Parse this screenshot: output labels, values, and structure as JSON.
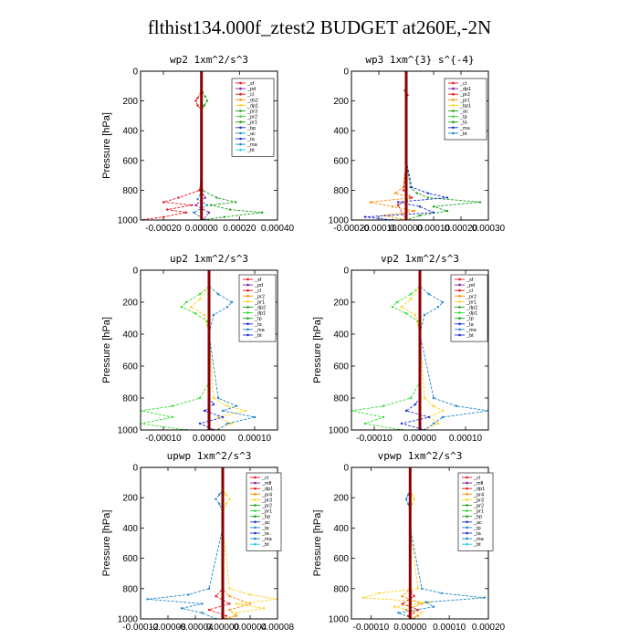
{
  "title": "flthist134.000f_ztest2  BUDGET at260E,-2N",
  "colors": {
    "red": "#e8141c",
    "purple": "#7b1fa2",
    "orange": "#ff8c00",
    "yellow": "#ffd11a",
    "green": "#1aa01a",
    "lime": "#33dd33",
    "blue": "#1a2fd6",
    "teal": "#1e88c8",
    "cyan": "#22d3e6",
    "darkred": "#8b0000",
    "black": "#000000"
  },
  "chart_data": [
    {
      "type": "line",
      "title": "wp2  1xm^2/s^3",
      "ylabel": "Pressure [hPa]",
      "xlim": [
        -0.00032,
        0.0004
      ],
      "ylim": [
        1000,
        0
      ],
      "xticks": [
        -0.0002,
        0,
        0.0002,
        0.0004
      ],
      "xtick_labels": [
        "-0.00020",
        "0.00000",
        "0.00020",
        "0.00040"
      ],
      "yticks": [
        0,
        200,
        400,
        600,
        800,
        1000
      ],
      "ytick_labels": [
        "0",
        "200",
        "400",
        "600",
        "800",
        "1000"
      ],
      "legend": [
        "_sf",
        "_pd",
        "_cl",
        "_ds2",
        "_dp1",
        "_pr3",
        "_pr2",
        "_pr1",
        "_bp",
        "_ac",
        "_ta",
        "_ma",
        "_bt"
      ],
      "series": [
        {
          "name": "_pr2",
          "color": "green",
          "y": [
            0,
            100,
            140,
            170,
            200,
            230,
            260,
            300,
            400,
            700,
            800,
            850,
            880,
            900,
            930,
            950,
            980,
            1000
          ],
          "values": [
            0,
            0,
            5e-06,
            2e-05,
            3e-05,
            1.5e-05,
            0,
            0,
            0,
            0,
            5e-06,
            8e-05,
            0.00018,
            5e-05,
            0.00015,
            0.00032,
            0.00012,
            0
          ]
        },
        {
          "name": "_pr1",
          "color": "red",
          "y": [
            0,
            100,
            150,
            180,
            200,
            230,
            260,
            300,
            400,
            700,
            800,
            850,
            880,
            900,
            930,
            950,
            980,
            1000
          ],
          "values": [
            0,
            0,
            -5e-06,
            -2e-05,
            -3e-05,
            -2e-05,
            0,
            0,
            0,
            0,
            -1e-05,
            -0.00012,
            -0.0002,
            -5e-05,
            -0.00018,
            -8e-05,
            -0.0002,
            -0.00033
          ]
        },
        {
          "name": "_ac",
          "color": "purple",
          "y": [
            0,
            400,
            800,
            850,
            900,
            950,
            1000
          ],
          "values": [
            0,
            0,
            -5e-06,
            2e-05,
            -3e-05,
            4e-05,
            1e-05
          ]
        },
        {
          "name": "_ta",
          "color": "teal",
          "y": [
            0,
            400,
            800,
            860,
            900,
            950,
            1000
          ],
          "values": [
            0,
            0,
            5e-06,
            -2e-05,
            3e-05,
            -4e-05,
            2e-05
          ]
        },
        {
          "name": "_bt",
          "color": "darkred",
          "y": [
            0,
            1000
          ],
          "values": [
            0,
            0
          ]
        }
      ]
    },
    {
      "type": "line",
      "title": "wp3  1xm^{3} s^{-4}",
      "ylabel": "",
      "xlim": [
        -0.0002,
        0.0003
      ],
      "ylim": [
        1000,
        0
      ],
      "xticks": [
        -0.0002,
        -0.0001,
        0,
        0.0001,
        0.0002,
        0.0003
      ],
      "xtick_labels": [
        "-0.00020",
        "-0.00010",
        "0.00000",
        "0.00010",
        "0.00020",
        "0.00030"
      ],
      "yticks": [
        0,
        200,
        400,
        600,
        800,
        1000
      ],
      "ytick_labels": [
        "0",
        "200",
        "400",
        "600",
        "800",
        "1000"
      ],
      "legend": [
        "_cl",
        "_dp1",
        "_pr2",
        "_pr1",
        "_bp1",
        "_ac",
        "_tp",
        "_ta",
        "_ma",
        "_bt"
      ],
      "series": [
        {
          "name": "_pr1",
          "color": "orange",
          "y": [
            0,
            600,
            780,
            820,
            850,
            880,
            910,
            940,
            970,
            1000
          ],
          "values": [
            0,
            0,
            -1e-05,
            -4e-05,
            2e-05,
            -0.00013,
            -5e-05,
            3e-05,
            -8e-05,
            0
          ]
        },
        {
          "name": "_ac",
          "color": "green",
          "y": [
            0,
            600,
            780,
            820,
            850,
            880,
            910,
            940,
            970,
            1000
          ],
          "values": [
            0,
            0,
            1.5e-05,
            4e-05,
            8e-05,
            0.00027,
            0.0001,
            0.00015,
            5e-05,
            0
          ]
        },
        {
          "name": "_ta",
          "color": "blue",
          "y": [
            0,
            600,
            780,
            820,
            850,
            880,
            910,
            950,
            980,
            1000
          ],
          "values": [
            0,
            0,
            2e-05,
            8e-05,
            0.00015,
            -3e-05,
            5e-05,
            0.0001,
            -0.00015,
            -5e-05
          ]
        },
        {
          "name": "_cl",
          "color": "red",
          "y": [
            0,
            100,
            130,
            160,
            200,
            600,
            800,
            850,
            900,
            1000
          ],
          "values": [
            0,
            0,
            -5e-06,
            5e-06,
            0,
            0,
            -1e-05,
            2e-05,
            -3e-05,
            0
          ]
        },
        {
          "name": "_bt",
          "color": "darkred",
          "y": [
            0,
            1000
          ],
          "values": [
            0,
            0
          ]
        }
      ]
    },
    {
      "type": "line",
      "title": "up2  1xm^2/s^3",
      "ylabel": "Pressure [hPa]",
      "xlim": [
        -0.00015,
        0.00015
      ],
      "ylim": [
        1000,
        0
      ],
      "xticks": [
        -0.0001,
        0,
        0.0001
      ],
      "xtick_labels": [
        "-0.00010",
        "0.00000",
        "0.00010"
      ],
      "yticks": [
        0,
        200,
        400,
        600,
        800,
        1000
      ],
      "ytick_labels": [
        "0",
        "200",
        "400",
        "600",
        "800",
        "1000"
      ],
      "legend": [
        "_sf",
        "_pd",
        "_cl",
        "_pr2",
        "_pr1",
        "_dp2",
        "_dp1",
        "_tp",
        "_ta",
        "_ma",
        "_bt"
      ],
      "series": [
        {
          "name": "_dp1",
          "color": "lime",
          "y": [
            0,
            100,
            150,
            200,
            230,
            270,
            320,
            400,
            700,
            800,
            850,
            880,
            920,
            960,
            1000
          ],
          "values": [
            0,
            0,
            -2e-05,
            -5e-05,
            -6e-05,
            -3e-05,
            -5e-06,
            0,
            0,
            -2e-05,
            -8e-05,
            -0.00015,
            -8e-05,
            -0.00015,
            -5e-05
          ]
        },
        {
          "name": "_pr2",
          "color": "yellow",
          "y": [
            0,
            100,
            180,
            230,
            280,
            400,
            800,
            850,
            880,
            920,
            960,
            1000
          ],
          "values": [
            0,
            0,
            -2e-05,
            -4e-05,
            -1e-05,
            0,
            1e-05,
            4e-05,
            8e-05,
            2e-05,
            5e-05,
            1e-05
          ]
        },
        {
          "name": "_tp",
          "color": "teal",
          "y": [
            0,
            100,
            150,
            200,
            230,
            280,
            400,
            800,
            850,
            880,
            920,
            960,
            1000
          ],
          "values": [
            0,
            0,
            2e-05,
            5e-05,
            4e-05,
            1e-05,
            0,
            2e-05,
            6e-05,
            3e-05,
            0.0001,
            4e-05,
            2e-05
          ]
        },
        {
          "name": "_cl",
          "color": "blue",
          "y": [
            0,
            800,
            840,
            880,
            920,
            960,
            1000
          ],
          "values": [
            0,
            0,
            1e-05,
            -1e-05,
            3e-05,
            -2e-05,
            1e-05
          ]
        },
        {
          "name": "_bt",
          "color": "darkred",
          "y": [
            0,
            1000
          ],
          "values": [
            0,
            0
          ]
        }
      ]
    },
    {
      "type": "line",
      "title": "vp2  1xm^2/s^3",
      "ylabel": "Pressure [hPa]",
      "xlim": [
        -0.00015,
        0.00015
      ],
      "ylim": [
        1000,
        0
      ],
      "xticks": [
        -0.0001,
        0,
        0.0001
      ],
      "xtick_labels": [
        "-0.00010",
        "0.00000",
        "0.00010"
      ],
      "yticks": [
        0,
        200,
        400,
        600,
        800,
        1000
      ],
      "ytick_labels": [
        "0",
        "200",
        "400",
        "600",
        "800",
        "1000"
      ],
      "legend": [
        "_sf",
        "_pd",
        "_cl",
        "_pr2",
        "_pr1",
        "_dp2",
        "_dp1",
        "_tp",
        "_ta",
        "_ma",
        "_bt"
      ],
      "series": [
        {
          "name": "_dp1",
          "color": "lime",
          "y": [
            0,
            100,
            150,
            200,
            230,
            270,
            320,
            400,
            700,
            800,
            850,
            880,
            920,
            960,
            1000
          ],
          "values": [
            0,
            0,
            -2e-05,
            -5e-05,
            -6e-05,
            -3e-05,
            -5e-06,
            0,
            0,
            -2e-05,
            -8e-05,
            -0.00015,
            -8e-05,
            -0.00012,
            -4e-05
          ]
        },
        {
          "name": "_pr2",
          "color": "yellow",
          "y": [
            0,
            100,
            180,
            230,
            280,
            400,
            800,
            850,
            880,
            920,
            960,
            1000
          ],
          "values": [
            0,
            0,
            -2e-05,
            -4e-05,
            -1e-05,
            0,
            1e-05,
            3e-05,
            5e-05,
            2e-05,
            4e-05,
            1e-05
          ]
        },
        {
          "name": "_tp",
          "color": "teal",
          "y": [
            0,
            100,
            150,
            200,
            230,
            280,
            400,
            800,
            850,
            880,
            920,
            960,
            1000
          ],
          "values": [
            0,
            0,
            2e-05,
            5e-05,
            4e-05,
            1e-05,
            0,
            3e-05,
            8e-05,
            0.00015,
            5e-05,
            3e-05,
            1e-05
          ]
        },
        {
          "name": "_cl",
          "color": "blue",
          "y": [
            0,
            800,
            840,
            880,
            920,
            960,
            1000
          ],
          "values": [
            0,
            0,
            -1e-05,
            -3e-05,
            2e-05,
            -4e-05,
            1e-05
          ]
        },
        {
          "name": "_bt",
          "color": "darkred",
          "y": [
            0,
            1000
          ],
          "values": [
            0,
            0
          ]
        }
      ]
    },
    {
      "type": "line",
      "title": "upwp  1xm^2/s^3",
      "ylabel": "Pressure [hPa]",
      "xlim": [
        -0.00012,
        8e-05
      ],
      "ylim": [
        1000,
        0
      ],
      "xticks": [
        -0.00012,
        -8e-05,
        -4e-05,
        0,
        4e-05,
        8e-05
      ],
      "xtick_labels": [
        "-0.00012",
        "-0.00008",
        "-0.00004",
        "0.00000",
        "0.00004",
        "0.00008"
      ],
      "yticks": [
        0,
        200,
        400,
        600,
        800,
        1000
      ],
      "ytick_labels": [
        "0",
        "200",
        "400",
        "600",
        "800",
        "1000"
      ],
      "legend": [
        "_cl",
        "_mfl",
        "_dp1",
        "_pr4",
        "_pr3",
        "_pr2",
        "_pr1",
        "_bp",
        "_ac",
        "_tp",
        "_ta",
        "_ma",
        "_bt"
      ],
      "series": [
        {
          "name": "_pr3",
          "color": "yellow",
          "y": [
            0,
            150,
            180,
            210,
            240,
            300,
            400,
            800,
            840,
            870,
            900,
            930,
            960,
            1000
          ],
          "values": [
            0,
            0,
            5e-06,
            1e-05,
            5e-06,
            0,
            0,
            1e-05,
            4e-05,
            8e-05,
            2e-05,
            6e-05,
            2e-05,
            1e-05
          ]
        },
        {
          "name": "_tp",
          "color": "teal",
          "y": [
            0,
            150,
            180,
            210,
            240,
            300,
            400,
            800,
            840,
            870,
            900,
            930,
            960,
            1000
          ],
          "values": [
            0,
            0,
            -5e-06,
            -1e-05,
            -5e-06,
            0,
            0,
            -2e-05,
            -5e-05,
            -0.00011,
            -3e-05,
            -6e-05,
            -3e-05,
            -1e-05
          ]
        },
        {
          "name": "_pr1",
          "color": "orange",
          "y": [
            0,
            800,
            850,
            900,
            940,
            980,
            1000
          ],
          "values": [
            0,
            0,
            1e-05,
            4e-05,
            1e-05,
            2e-05,
            0
          ]
        },
        {
          "name": "_dp1",
          "color": "red",
          "y": [
            0,
            800,
            850,
            900,
            940,
            980,
            1000
          ],
          "values": [
            0,
            0,
            -1e-05,
            1e-05,
            -2e-05,
            5e-06,
            0
          ]
        },
        {
          "name": "_bt",
          "color": "darkred",
          "y": [
            0,
            1000
          ],
          "values": [
            0,
            0
          ]
        }
      ]
    },
    {
      "type": "line",
      "title": "vpwp  1xm^2/s^3",
      "ylabel": "Pressure [hPa]",
      "xlim": [
        -0.00015,
        0.0002
      ],
      "ylim": [
        1000,
        0
      ],
      "xticks": [
        -0.0001,
        0,
        0.0001,
        0.0002
      ],
      "xtick_labels": [
        "-0.00010",
        "0.00000",
        "0.00010",
        "0.00020"
      ],
      "yticks": [
        0,
        200,
        400,
        600,
        800,
        1000
      ],
      "ytick_labels": [
        "0",
        "200",
        "400",
        "600",
        "800",
        "1000"
      ],
      "legend": [
        "_cl",
        "_mfl",
        "_dp1",
        "_pr4",
        "_pr3",
        "_pr2",
        "_pr1",
        "_bp",
        "_ac",
        "_tp",
        "_ta",
        "_ma",
        "_bt"
      ],
      "series": [
        {
          "name": "_pr3",
          "color": "yellow",
          "y": [
            0,
            150,
            180,
            210,
            240,
            300,
            400,
            800,
            830,
            860,
            890,
            920,
            960,
            1000
          ],
          "values": [
            0,
            0,
            5e-06,
            1e-05,
            5e-06,
            0,
            0,
            2e-05,
            -8e-05,
            -0.00012,
            5e-05,
            -4e-05,
            3e-05,
            1e-05
          ]
        },
        {
          "name": "_tp",
          "color": "teal",
          "y": [
            0,
            150,
            180,
            210,
            240,
            300,
            400,
            800,
            830,
            860,
            890,
            920,
            960,
            1000
          ],
          "values": [
            0,
            0,
            -5e-06,
            -1e-05,
            -5e-06,
            0,
            0,
            3e-05,
            8e-05,
            0.00019,
            4e-05,
            6e-05,
            -3e-05,
            1e-05
          ]
        },
        {
          "name": "_pr1",
          "color": "orange",
          "y": [
            0,
            800,
            850,
            900,
            940,
            980,
            1000
          ],
          "values": [
            0,
            0,
            -2e-05,
            3e-05,
            -1e-05,
            2e-05,
            0
          ]
        },
        {
          "name": "_dp1",
          "color": "red",
          "y": [
            0,
            800,
            850,
            900,
            940,
            980,
            1000
          ],
          "values": [
            0,
            0,
            1e-05,
            -2e-05,
            2e-05,
            -5e-06,
            0
          ]
        },
        {
          "name": "_bt",
          "color": "darkred",
          "y": [
            0,
            1000
          ],
          "values": [
            0,
            0
          ]
        }
      ]
    }
  ]
}
